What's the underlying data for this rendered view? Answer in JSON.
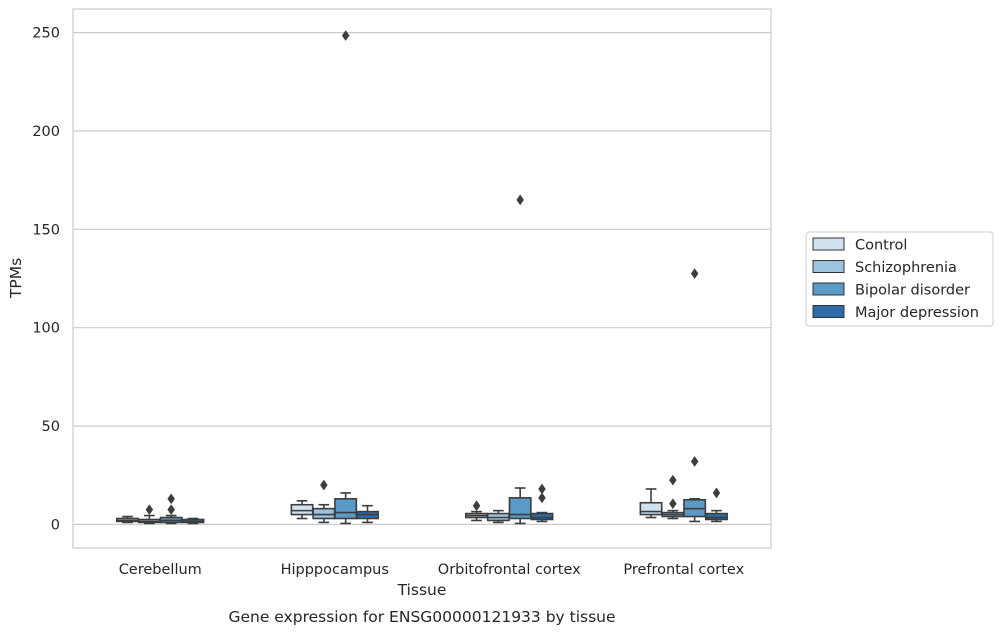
{
  "chart_data": {
    "type": "box",
    "title": "",
    "caption": "Gene expression for ENSG00000121933 by tissue",
    "xlabel": "Tissue",
    "ylabel": "TPMs",
    "ylim": [
      -12,
      262
    ],
    "yticks": [
      0,
      50,
      100,
      150,
      200,
      250
    ],
    "grid": "horizontal",
    "legend_position": "right",
    "categories": [
      "Cerebellum",
      "Hipppocampus",
      "Orbitofrontal cortex",
      "Prefrontal cortex"
    ],
    "series": [
      {
        "name": "Control",
        "color": "#d0e1f0",
        "boxes": [
          {
            "whisker_low": 1,
            "q1": 1.5,
            "median": 2,
            "q3": 3,
            "whisker_high": 4,
            "outliers": []
          },
          {
            "whisker_low": 3,
            "q1": 5,
            "median": 7,
            "q3": 10,
            "whisker_high": 12,
            "outliers": []
          },
          {
            "whisker_low": 2,
            "q1": 3.5,
            "median": 4.5,
            "q3": 5.5,
            "whisker_high": 6.5,
            "outliers": [
              9.5
            ]
          },
          {
            "whisker_low": 3.5,
            "q1": 5,
            "median": 6.5,
            "q3": 11,
            "whisker_high": 18,
            "outliers": []
          }
        ]
      },
      {
        "name": "Schizophrenia",
        "color": "#9cc4de",
        "boxes": [
          {
            "whisker_low": 0.5,
            "q1": 1,
            "median": 1.5,
            "q3": 2.5,
            "whisker_high": 4.5,
            "outliers": [
              7.5
            ]
          },
          {
            "whisker_low": 1,
            "q1": 3,
            "median": 5,
            "q3": 8,
            "whisker_high": 10,
            "outliers": [
              20
            ]
          },
          {
            "whisker_low": 1,
            "q1": 2,
            "median": 3.5,
            "q3": 5.5,
            "whisker_high": 7,
            "outliers": []
          },
          {
            "whisker_low": 3,
            "q1": 4,
            "median": 5,
            "q3": 6,
            "whisker_high": 7,
            "outliers": [
              10.5,
              22.5
            ]
          }
        ]
      },
      {
        "name": "Bipolar disorder",
        "color": "#5b9ac6",
        "boxes": [
          {
            "whisker_low": 0.5,
            "q1": 1,
            "median": 2,
            "q3": 3.5,
            "whisker_high": 4.5,
            "outliers": [
              7.5,
              13
            ]
          },
          {
            "whisker_low": 0.5,
            "q1": 3,
            "median": 6,
            "q3": 13,
            "whisker_high": 16,
            "outliers": [
              248.5
            ]
          },
          {
            "whisker_low": 0.5,
            "q1": 3,
            "median": 5,
            "q3": 13.5,
            "whisker_high": 18.5,
            "outliers": [
              165
            ]
          },
          {
            "whisker_low": 1.5,
            "q1": 4,
            "median": 8,
            "q3": 12.5,
            "whisker_high": 13,
            "outliers": [
              32,
              127.5
            ]
          }
        ]
      },
      {
        "name": "Major depression",
        "color": "#2d6ca9",
        "boxes": [
          {
            "whisker_low": 0.5,
            "q1": 1,
            "median": 1.5,
            "q3": 2.5,
            "whisker_high": 3,
            "outliers": []
          },
          {
            "whisker_low": 1,
            "q1": 3,
            "median": 5,
            "q3": 6.5,
            "whisker_high": 9.5,
            "outliers": []
          },
          {
            "whisker_low": 1.5,
            "q1": 2.5,
            "median": 3.5,
            "q3": 5.5,
            "whisker_high": 6,
            "outliers": [
              13.5,
              18
            ]
          },
          {
            "whisker_low": 1.5,
            "q1": 2.5,
            "median": 3.5,
            "q3": 5.5,
            "whisker_high": 7,
            "outliers": [
              16
            ]
          }
        ]
      }
    ]
  }
}
